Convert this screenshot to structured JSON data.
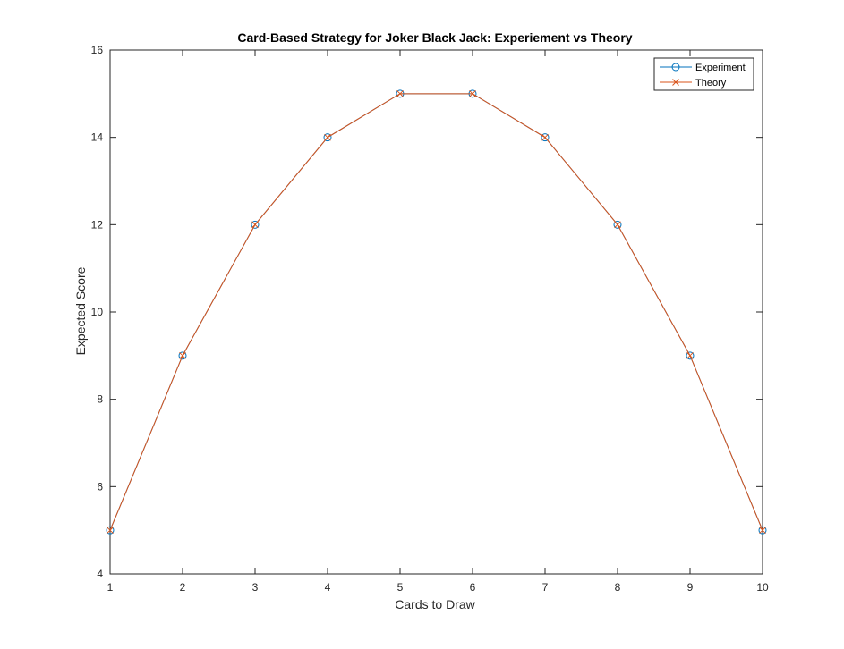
{
  "chart_data": {
    "type": "line",
    "title": "Card-Based Strategy for Joker Black Jack: Experiement vs Theory",
    "xlabel": "Cards to Draw",
    "ylabel": "Expected Score",
    "xlim": [
      1,
      10
    ],
    "ylim": [
      4,
      16
    ],
    "x_ticks": [
      "1",
      "2",
      "3",
      "4",
      "5",
      "6",
      "7",
      "8",
      "9",
      "10"
    ],
    "y_ticks": [
      "4",
      "6",
      "8",
      "10",
      "12",
      "14",
      "16"
    ],
    "grid": false,
    "legend_position": "top-right",
    "x": [
      1,
      2,
      3,
      4,
      5,
      6,
      7,
      8,
      9,
      10
    ],
    "series": [
      {
        "name": "Experiment",
        "marker": "circle",
        "color": "#0072BD",
        "values": [
          5,
          9,
          12,
          14,
          15,
          15,
          14,
          12,
          9,
          5
        ]
      },
      {
        "name": "Theory",
        "marker": "x",
        "color": "#D95319",
        "values": [
          5,
          9,
          12,
          14,
          15,
          15,
          14,
          12,
          9,
          5
        ]
      }
    ]
  }
}
